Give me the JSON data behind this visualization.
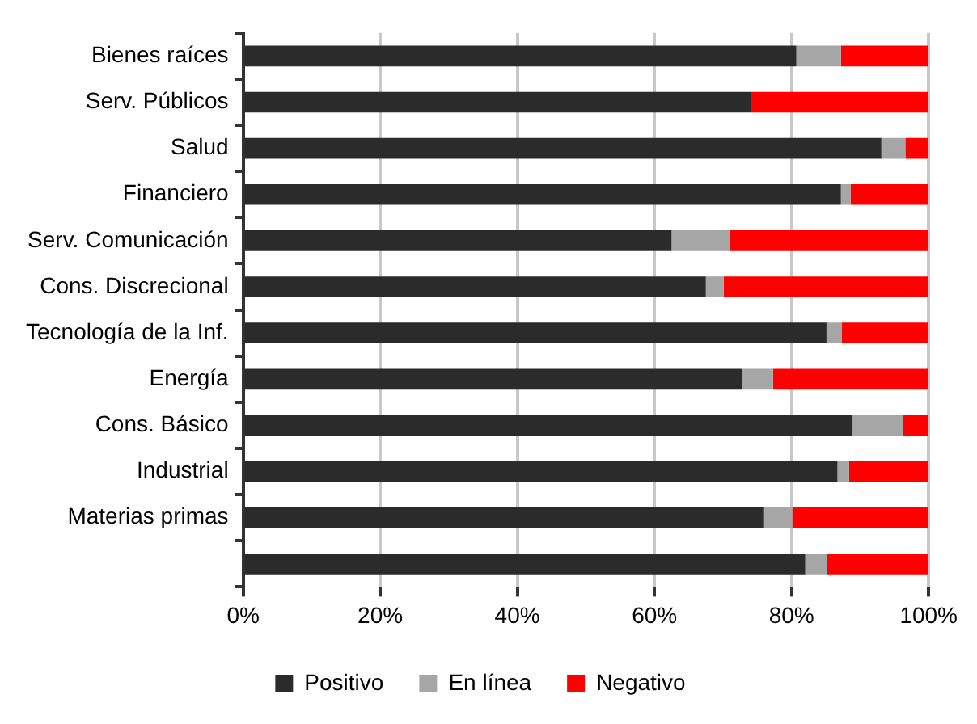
{
  "chart_data": {
    "type": "bar",
    "orientation": "horizontal",
    "stacked": true,
    "categories": [
      "Bienes raíces",
      "Serv. Públicos",
      "Salud",
      "Financiero",
      "Serv. Comunicación",
      "Cons. Discrecional",
      "Tecnología de la Inf.",
      "Energía",
      "Cons. Básico",
      "Industrial",
      "Materias primas",
      null
    ],
    "series": [
      {
        "name": "Positivo",
        "color": "#2b2b2b",
        "values": [
          80.7,
          74.1,
          93.1,
          87.2,
          62.5,
          67.5,
          85.1,
          72.8,
          88.9,
          86.7,
          76.0,
          82.0
        ]
      },
      {
        "name": "En línea",
        "color": "#a6a6a6",
        "values": [
          6.5,
          0,
          3.5,
          1.4,
          8.4,
          2.6,
          2.2,
          4.5,
          7.4,
          1.7,
          4.1,
          3.2
        ]
      },
      {
        "name": "Negativo",
        "color": "#ff0000",
        "values": [
          12.8,
          25.9,
          3.4,
          11.4,
          29.1,
          29.9,
          12.7,
          22.7,
          3.7,
          11.6,
          19.9,
          14.8
        ]
      }
    ],
    "xlim": [
      0,
      100
    ],
    "xticks": [
      {
        "value": 0,
        "label": "0%"
      },
      {
        "value": 20,
        "label": "20%"
      },
      {
        "value": 40,
        "label": "40%"
      },
      {
        "value": 60,
        "label": "60%"
      },
      {
        "value": 80,
        "label": "80%"
      },
      {
        "value": 100,
        "label": "100%"
      }
    ],
    "grid": "x",
    "legend": "bottom"
  }
}
